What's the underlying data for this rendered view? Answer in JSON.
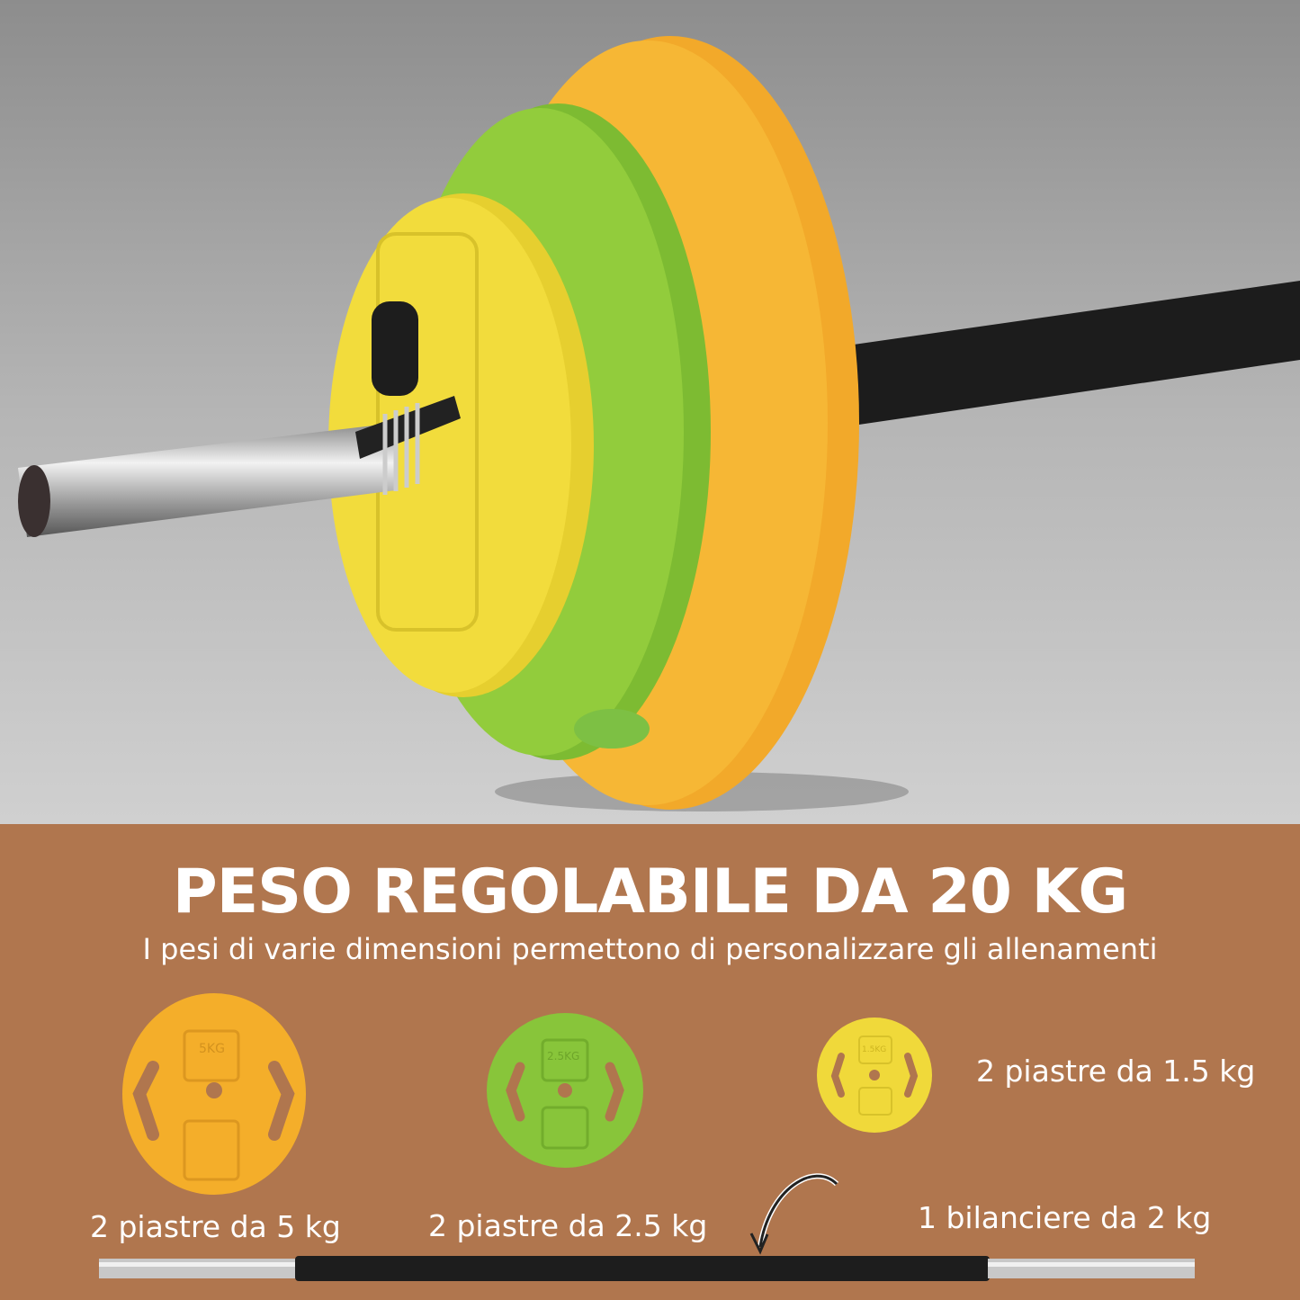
{
  "colors": {
    "panel": "#b0764e",
    "plate_5kg": "#f4b02c",
    "plate_2_5kg": "#8cc63c",
    "plate_1_5kg": "#f2dc3a",
    "bar": "#1e1e1e",
    "background": "#9a9a9a"
  },
  "headline": "PESO REGOLABILE DA 20 KG",
  "subheadline": "I pesi di varie dimensioni permettono di personalizzare gli allenamenti",
  "items": [
    {
      "label": "2 piastre da 5 kg",
      "plate_mark": "5KG"
    },
    {
      "label": "2 piastre da 2.5 kg",
      "plate_mark": "2.5KG"
    },
    {
      "label": "2 piastre da 1.5 kg",
      "plate_mark": "1.5KG"
    },
    {
      "label": "1 bilanciere da 2 kg"
    }
  ]
}
